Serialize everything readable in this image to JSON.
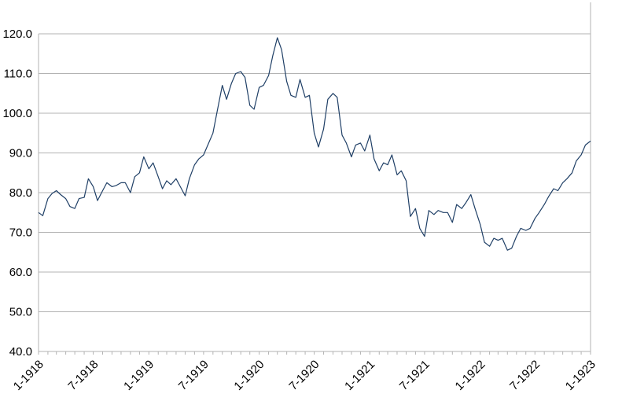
{
  "chart_data": {
    "type": "line",
    "title": "",
    "xlabel": "",
    "ylabel": "",
    "ylim": [
      40,
      120
    ],
    "grid": true,
    "legend": "none",
    "colors": {
      "line": "#1f3f66",
      "grid": "#b3b3b3",
      "axis": "#b3b3b3"
    },
    "y_ticks": [
      "40.0",
      "50.0",
      "60.0",
      "70.0",
      "80.0",
      "90.0",
      "100.0",
      "110.0",
      "120.0"
    ],
    "x_ticks": [
      "1-1918",
      "7-1918",
      "1-1919",
      "7-1919",
      "1-1920",
      "7-1920",
      "1-1921",
      "7-1921",
      "1-1922",
      "7-1922",
      "1-1923"
    ],
    "series": [
      {
        "points": [
          [
            "1918-01",
            75.0
          ],
          [
            "1918-01-15",
            74.2
          ],
          [
            "1918-02",
            78.5
          ],
          [
            "1918-02-15",
            79.8
          ],
          [
            "1918-03",
            80.5
          ],
          [
            "1918-03-15",
            79.5
          ],
          [
            "1918-04",
            78.5
          ],
          [
            "1918-04-15",
            76.5
          ],
          [
            "1918-05",
            76.0
          ],
          [
            "1918-05-15",
            78.5
          ],
          [
            "1918-06",
            78.8
          ],
          [
            "1918-06-15",
            83.5
          ],
          [
            "1918-07",
            81.5
          ],
          [
            "1918-07-15",
            78.0
          ],
          [
            "1918-08",
            80.5
          ],
          [
            "1918-08-15",
            82.5
          ],
          [
            "1918-09",
            81.5
          ],
          [
            "1918-09-15",
            81.8
          ],
          [
            "1918-10",
            82.5
          ],
          [
            "1918-10-15",
            82.5
          ],
          [
            "1918-11",
            80.0
          ],
          [
            "1918-11-15",
            84.0
          ],
          [
            "1918-12",
            85.0
          ],
          [
            "1918-12-15",
            89.0
          ],
          [
            "1919-01",
            86.0
          ],
          [
            "1919-01-15",
            87.5
          ],
          [
            "1919-02",
            84.0
          ],
          [
            "1919-02-15",
            81.0
          ],
          [
            "1919-03",
            83.0
          ],
          [
            "1919-03-15",
            82.0
          ],
          [
            "1919-04",
            83.5
          ],
          [
            "1919-04-15",
            81.5
          ],
          [
            "1919-05",
            79.2
          ],
          [
            "1919-05-15",
            83.5
          ],
          [
            "1919-06",
            87.0
          ],
          [
            "1919-06-15",
            88.5
          ],
          [
            "1919-07",
            89.5
          ],
          [
            "1919-07-15",
            92.0
          ],
          [
            "1919-08",
            95.0
          ],
          [
            "1919-08-15",
            100.5
          ],
          [
            "1919-09",
            107.0
          ],
          [
            "1919-09-15",
            103.5
          ],
          [
            "1919-10",
            107.5
          ],
          [
            "1919-10-15",
            110.0
          ],
          [
            "1919-11",
            110.5
          ],
          [
            "1919-11-15",
            109.0
          ],
          [
            "1919-12",
            102.0
          ],
          [
            "1919-12-15",
            101.0
          ],
          [
            "1920-01",
            106.5
          ],
          [
            "1920-01-15",
            107.0
          ],
          [
            "1920-02",
            109.5
          ],
          [
            "1920-02-15",
            114.5
          ],
          [
            "1920-03",
            119.0
          ],
          [
            "1920-03-15",
            116.0
          ],
          [
            "1920-04",
            108.0
          ],
          [
            "1920-04-15",
            104.5
          ],
          [
            "1920-05",
            104.0
          ],
          [
            "1920-05-15",
            108.5
          ],
          [
            "1920-06",
            104.0
          ],
          [
            "1920-06-15",
            104.5
          ],
          [
            "1920-07",
            95.0
          ],
          [
            "1920-07-15",
            91.5
          ],
          [
            "1920-08",
            96.0
          ],
          [
            "1920-08-15",
            103.5
          ],
          [
            "1920-09",
            105.0
          ],
          [
            "1920-09-15",
            104.0
          ],
          [
            "1920-10",
            94.5
          ],
          [
            "1920-10-15",
            92.5
          ],
          [
            "1920-11",
            89.0
          ],
          [
            "1920-11-15",
            92.0
          ],
          [
            "1920-12",
            92.5
          ],
          [
            "1920-12-15",
            90.5
          ],
          [
            "1921-01",
            94.5
          ],
          [
            "1921-01-15",
            88.5
          ],
          [
            "1921-02",
            85.5
          ],
          [
            "1921-02-15",
            87.5
          ],
          [
            "1921-03",
            87.0
          ],
          [
            "1921-03-15",
            89.5
          ],
          [
            "1921-04",
            84.5
          ],
          [
            "1921-04-15",
            85.5
          ],
          [
            "1921-05",
            83.0
          ],
          [
            "1921-05-15",
            74.0
          ],
          [
            "1921-06",
            76.0
          ],
          [
            "1921-06-15",
            71.0
          ],
          [
            "1921-07",
            69.0
          ],
          [
            "1921-07-15",
            75.5
          ],
          [
            "1921-08",
            74.5
          ],
          [
            "1921-08-15",
            75.5
          ],
          [
            "1921-09",
            75.0
          ],
          [
            "1921-09-15",
            75.0
          ],
          [
            "1921-10",
            72.5
          ],
          [
            "1921-10-15",
            77.0
          ],
          [
            "1921-11",
            76.0
          ],
          [
            "1921-11-15",
            77.5
          ],
          [
            "1921-12",
            79.5
          ],
          [
            "1921-12-15",
            76.0
          ],
          [
            "1922-01",
            72.0
          ],
          [
            "1922-01-15",
            67.5
          ],
          [
            "1922-02",
            66.5
          ],
          [
            "1922-02-15",
            68.5
          ],
          [
            "1922-03",
            68.0
          ],
          [
            "1922-03-15",
            68.5
          ],
          [
            "1922-04",
            65.5
          ],
          [
            "1922-04-15",
            66.0
          ],
          [
            "1922-05",
            69.0
          ],
          [
            "1922-05-15",
            71.0
          ],
          [
            "1922-06",
            70.5
          ],
          [
            "1922-06-15",
            71.0
          ],
          [
            "1922-07",
            73.5
          ],
          [
            "1922-07-15",
            75.0
          ],
          [
            "1922-08",
            77.0
          ],
          [
            "1922-08-15",
            79.0
          ],
          [
            "1922-09",
            81.0
          ],
          [
            "1922-09-15",
            80.5
          ],
          [
            "1922-10",
            82.5
          ],
          [
            "1922-10-15",
            83.5
          ],
          [
            "1922-11",
            85.0
          ],
          [
            "1922-11-15",
            88.0
          ],
          [
            "1922-12",
            89.5
          ],
          [
            "1922-12-15",
            92.0
          ],
          [
            "1923-01",
            93.0
          ]
        ]
      }
    ]
  }
}
